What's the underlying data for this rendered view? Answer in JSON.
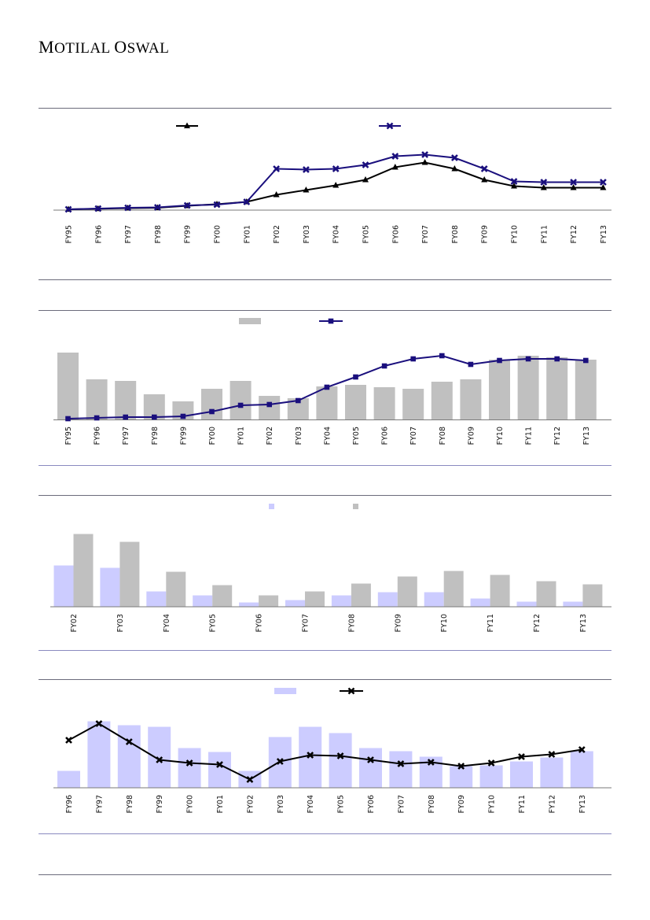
{
  "header": {
    "brand_first": "M",
    "brand_rest1": "OTILAL",
    "brand_second": "O",
    "brand_rest2": "SWAL"
  },
  "colors": {
    "navy": "#1a0f7d",
    "black": "#000000",
    "grey_bar": "#c0c0c0",
    "lavender_bar": "#ccccff",
    "rule": "#6b6b7b"
  },
  "chart_data": [
    {
      "type": "line",
      "categories": [
        "FY95",
        "FY96",
        "FY97",
        "FY98",
        "FY99",
        "FY00",
        "FY01",
        "FY02",
        "FY03",
        "FY04",
        "FY05",
        "FY06",
        "FY07",
        "FY08",
        "FY09",
        "FY10",
        "FY11",
        "FY12",
        "FY13"
      ],
      "series": [
        {
          "marker": "triangle",
          "color": "#000000",
          "values": [
            0.5,
            1.2,
            2.0,
            2.5,
            5,
            7,
            10,
            19,
            25,
            31,
            38,
            54,
            60,
            52,
            38,
            30,
            28,
            28,
            28
          ]
        },
        {
          "marker": "x",
          "color": "#1a0f7d",
          "values": [
            0.5,
            1.5,
            2.5,
            3.0,
            5.5,
            6.5,
            10,
            52,
            51,
            52,
            57,
            68,
            70,
            66,
            52,
            36,
            35,
            35,
            35
          ]
        }
      ],
      "legend": "top",
      "grid": false
    },
    {
      "type": "bar",
      "categories": [
        "FY95",
        "FY96",
        "FY97",
        "FY98",
        "FY99",
        "FY00",
        "FY01",
        "FY02",
        "FY03",
        "FY04",
        "FY05",
        "FY06",
        "FY07",
        "FY08",
        "FY09",
        "FY10",
        "FY11",
        "FY12",
        "FY13"
      ],
      "series": [
        {
          "kind": "bar",
          "color": "#c0c0c0",
          "values": [
            85,
            51,
            49,
            32,
            23,
            39,
            49,
            30,
            27,
            42,
            44,
            41,
            39,
            48,
            51,
            76,
            81,
            79,
            76
          ]
        },
        {
          "kind": "line",
          "marker": "square",
          "color": "#1a0f7d",
          "values": [
            1,
            2,
            3,
            3,
            4,
            10,
            18,
            19,
            24,
            41,
            54,
            68,
            77,
            81,
            70,
            75,
            77,
            77,
            75
          ]
        }
      ],
      "legend": "top",
      "grid": false
    },
    {
      "type": "bar",
      "categories": [
        "FY02",
        "FY03",
        "FY04",
        "FY05",
        "FY06",
        "FY07",
        "FY08",
        "FY09",
        "FY10",
        "FY11",
        "FY12",
        "FY13"
      ],
      "series": [
        {
          "color": "#ccccff",
          "values": [
            52,
            49,
            19,
            14,
            5,
            8,
            14,
            18,
            18,
            10,
            6,
            6
          ]
        },
        {
          "color": "#c0c0c0",
          "values": [
            92,
            82,
            44,
            27,
            14,
            19,
            29,
            38,
            45,
            40,
            32,
            28
          ]
        }
      ],
      "legend": "top",
      "grid": false
    },
    {
      "type": "bar",
      "categories": [
        "FY96",
        "FY97",
        "FY98",
        "FY99",
        "FY00",
        "FY01",
        "FY02",
        "FY03",
        "FY04",
        "FY05",
        "FY06",
        "FY07",
        "FY08",
        "FY09",
        "FY10",
        "FY11",
        "FY12",
        "FY13"
      ],
      "series": [
        {
          "kind": "bar",
          "color": "#ccccff",
          "values": [
            21,
            84,
            79,
            77,
            50,
            45,
            21,
            64,
            77,
            69,
            50,
            46,
            39,
            27,
            28,
            33,
            38,
            46
          ]
        },
        {
          "kind": "line",
          "marker": "x",
          "color": "#000000",
          "values": [
            60,
            81,
            58,
            35,
            31,
            29,
            10,
            33,
            41,
            40,
            35,
            30,
            32,
            27,
            31,
            39,
            42,
            48
          ]
        }
      ],
      "legend": "top",
      "grid": false
    }
  ]
}
